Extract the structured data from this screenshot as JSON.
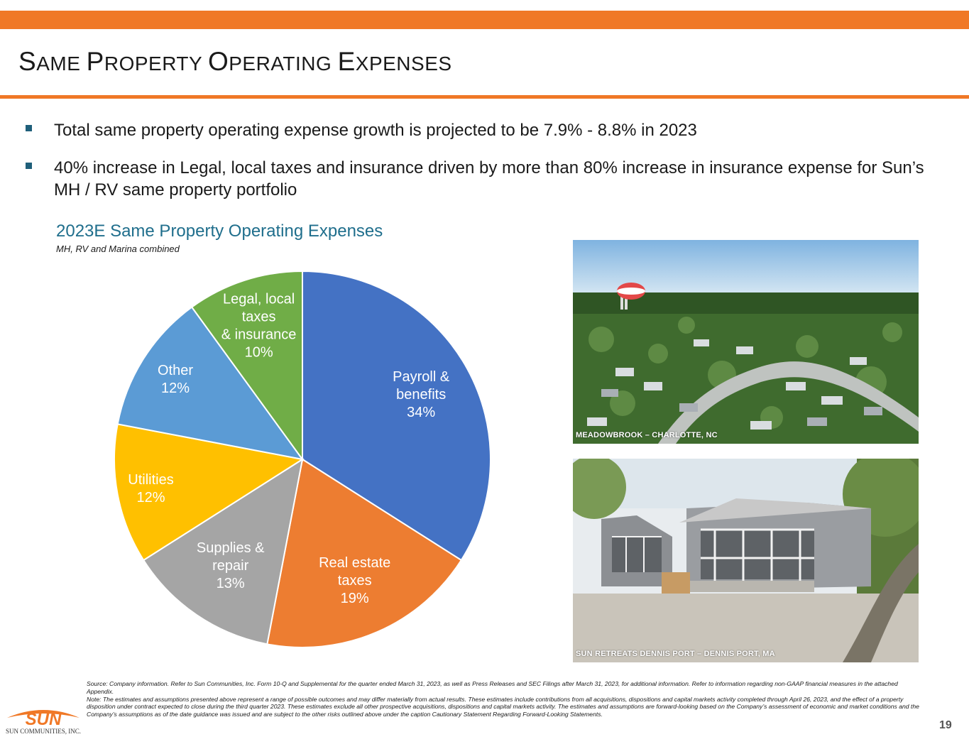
{
  "header": {
    "title_parts": [
      {
        "cap": "S",
        "rest": "AME "
      },
      {
        "cap": "P",
        "rest": "ROPERTY "
      },
      {
        "cap": "O",
        "rest": "PERATING "
      },
      {
        "cap": "E",
        "rest": "XPENSES"
      }
    ]
  },
  "bullets": [
    "Total same property operating expense growth is projected to be 7.9% - 8.8% in 2023",
    "40% increase in Legal, local taxes and insurance driven by more than 80% increase in insurance expense for Sun’s MH / RV same property portfolio"
  ],
  "chart_data": {
    "type": "pie",
    "title": "2023E Same Property Operating Expenses",
    "subtitle": "MH, RV and Marina combined",
    "slices": [
      {
        "label_lines": [
          "Payroll &",
          "benefits",
          "34%"
        ],
        "value": 34,
        "color": "#4472C4"
      },
      {
        "label_lines": [
          "Real estate",
          "taxes",
          "19%"
        ],
        "value": 19,
        "color": "#ED7D31"
      },
      {
        "label_lines": [
          "Supplies &",
          "repair",
          "13%"
        ],
        "value": 13,
        "color": "#A5A5A5"
      },
      {
        "label_lines": [
          "Utilities",
          "12%"
        ],
        "value": 12,
        "color": "#FFC000"
      },
      {
        "label_lines": [
          "Other",
          "12%"
        ],
        "value": 12,
        "color": "#5B9BD5"
      },
      {
        "label_lines": [
          "Legal, local",
          "taxes",
          "& insurance",
          "10%"
        ],
        "value": 10,
        "color": "#70AD47"
      }
    ]
  },
  "photos": {
    "top_caption": "MEADOWBROOK – CHARLOTTE, NC",
    "bottom_caption": "SUN RETREATS DENNIS PORT – DENNIS PORT, MA"
  },
  "footnote": {
    "source": "Source: Company information. Refer to Sun Communities, Inc. Form 10-Q and Supplemental for the quarter ended March 31, 2023, as well as Press Releases and SEC Filings after  March 31, 2023, for additional information. Refer to information regarding non-GAAP financial measures in the attached Appendix.",
    "note": "Note: The estimates and assumptions presented above represent a range of possible outcomes and may differ materially from actual results. These estimates include contributions from all acquisitions, dispositions and capital markets activity completed through April 26, 2023, and the effect of a property disposition under contract expected to close during the third quarter 2023.  These estimates exclude all other prospective acquisitions, dispositions and capital markets activity. The estimates and assumptions are forward-looking based on the Company’s assessment of economic and market conditions and the Company’s assumptions as of the date guidance was issued and are subject to the other risks outlined above under the caption Cautionary Statement Regarding Forward-Looking Statements."
  },
  "logo": {
    "text": "SUN",
    "subtext": "SUN COMMUNITIES, INC."
  },
  "page_number": "19",
  "colors": {
    "accent": "#F07826",
    "title_blue": "#1F6E8C",
    "bullet_marker": "#1F5F7A"
  }
}
